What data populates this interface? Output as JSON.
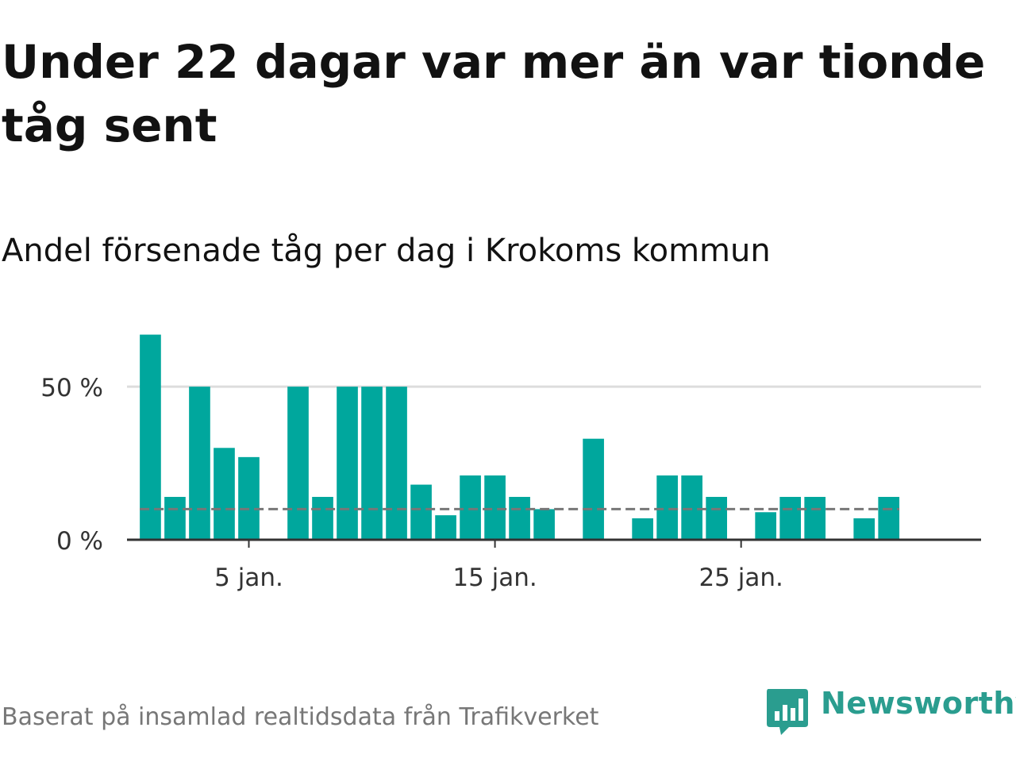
{
  "title": "Under 22 dagar var mer än var tionde tåg sent",
  "subtitle": "Andel försenade tåg per dag i Krokoms kommun",
  "source": "Baserat på insamlad realtidsdata från Trafikverket",
  "logo": {
    "name": "Newsworthy",
    "icon": "newsworthy-chart-bubble-icon"
  },
  "colors": {
    "bar": "#00a79d",
    "reference": "#777777",
    "grid": "#dddddd",
    "axis": "#333333"
  },
  "chart_data": {
    "type": "bar",
    "x": [
      1,
      2,
      3,
      4,
      5,
      6,
      7,
      8,
      9,
      10,
      11,
      12,
      13,
      14,
      15,
      16,
      17,
      18,
      19,
      20,
      21,
      22,
      23,
      24,
      25,
      26,
      27,
      28,
      29,
      30,
      31
    ],
    "values": [
      67,
      14,
      50,
      30,
      27,
      0,
      50,
      14,
      50,
      50,
      50,
      18,
      8,
      21,
      21,
      14,
      10,
      0,
      33,
      0,
      7,
      21,
      21,
      14,
      0,
      9,
      14,
      14,
      0,
      7,
      14
    ],
    "xlim": [
      0.05,
      34.75
    ],
    "ylim": [
      0,
      70
    ],
    "y_ticks": [
      0,
      50
    ],
    "y_tick_labels": [
      "0 %",
      "50 %"
    ],
    "x_ticks": [
      5,
      15,
      25
    ],
    "x_tick_labels": [
      "5 jan.",
      "15 jan.",
      "25 jan."
    ],
    "reference_line": 10,
    "grid": true,
    "xlabel": "",
    "ylabel": ""
  }
}
